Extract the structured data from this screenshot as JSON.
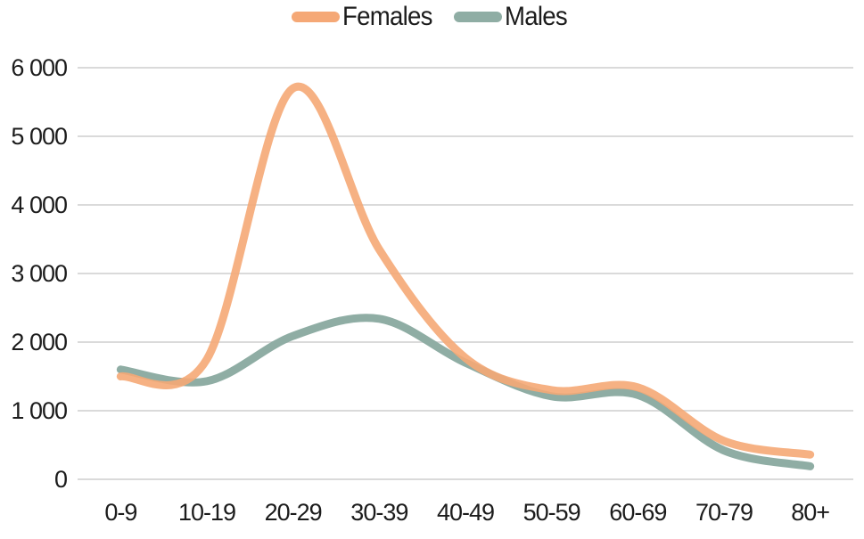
{
  "chart_data": {
    "type": "line",
    "title": "",
    "xlabel": "",
    "ylabel": "",
    "smooth": true,
    "grid": true,
    "legend_position": "top-center",
    "categories": [
      "0-9",
      "10-19",
      "20-29",
      "30-39",
      "40-49",
      "50-59",
      "60-69",
      "70-79",
      "80+"
    ],
    "series": [
      {
        "name": "Females",
        "color": "#F5A876",
        "values": [
          1500,
          1750,
          5700,
          3350,
          1770,
          1300,
          1340,
          560,
          360
        ]
      },
      {
        "name": "Males",
        "color": "#8FADA4",
        "values": [
          1600,
          1430,
          2090,
          2340,
          1700,
          1210,
          1230,
          420,
          190
        ]
      }
    ],
    "ylim": [
      0,
      6000
    ],
    "ytick_values": [
      0,
      1000,
      2000,
      3000,
      4000,
      5000,
      6000
    ],
    "ytick_labels": [
      "0",
      "1 000",
      "2 000",
      "3 000",
      "4 000",
      "5 000",
      "6 000"
    ]
  },
  "colors": {
    "background": "#FFFFFF",
    "grid": "#DADADA",
    "text": "#1C1C1C"
  }
}
